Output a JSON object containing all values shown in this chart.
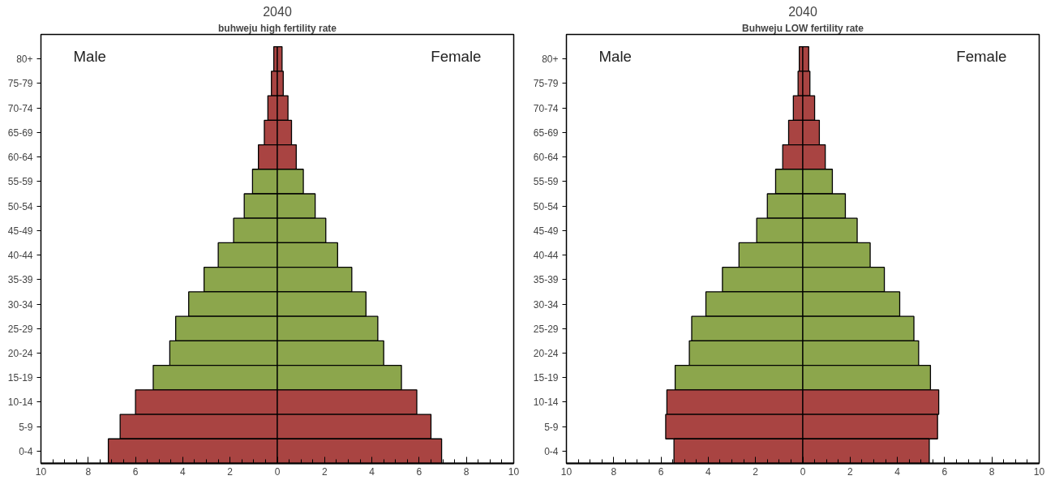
{
  "chart_data": [
    {
      "type": "bar",
      "orientation": "horizontal",
      "stacked": true,
      "title": "2040",
      "subtitle": "buhweju high fertility rate",
      "annotations": [
        "Male",
        "Female"
      ],
      "categories": [
        "80+",
        "75-79",
        "70-74",
        "65-69",
        "60-64",
        "55-59",
        "50-54",
        "45-49",
        "40-44",
        "35-39",
        "30-34",
        "25-29",
        "20-24",
        "15-19",
        "10-14",
        "5-9",
        "0-4"
      ],
      "series": [
        {
          "colors": [
            "#a94442",
            "#a94442",
            "#a94442",
            "#a94442",
            "#a94442",
            "#8ca64c",
            "#8ca64c",
            "#8ca64c",
            "#8ca64c",
            "#8ca64c",
            "#8ca64c",
            "#8ca64c",
            "#8ca64c",
            "#8ca64c",
            "#a94442",
            "#a94442",
            "#a94442"
          ],
          "values": [
            -0.15,
            -0.25,
            -0.4,
            -0.55,
            -0.8,
            -1.05,
            -1.4,
            -1.85,
            -2.5,
            -3.1,
            -3.75,
            -4.3,
            -4.55,
            -5.25,
            -6.0,
            -6.65,
            -7.15
          ]
        },
        {
          "colors": [
            "#a94442",
            "#a94442",
            "#a94442",
            "#a94442",
            "#a94442",
            "#8ca64c",
            "#8ca64c",
            "#8ca64c",
            "#8ca64c",
            "#8ca64c",
            "#8ca64c",
            "#8ca64c",
            "#8ca64c",
            "#8ca64c",
            "#a94442",
            "#a94442",
            "#a94442"
          ],
          "values": [
            0.2,
            0.25,
            0.45,
            0.6,
            0.8,
            1.1,
            1.6,
            2.05,
            2.55,
            3.15,
            3.75,
            4.25,
            4.5,
            5.25,
            5.9,
            6.5,
            6.95
          ]
        }
      ],
      "xlim": [
        -10,
        10
      ],
      "xticks": [
        {
          "value": -10,
          "label": "10"
        },
        {
          "value": -8,
          "label": "8"
        },
        {
          "value": -6,
          "label": "6"
        },
        {
          "value": -4,
          "label": "4"
        },
        {
          "value": -2,
          "label": "2"
        },
        0,
        2,
        4,
        6,
        8,
        10
      ],
      "grid": false
    },
    {
      "type": "bar",
      "orientation": "horizontal",
      "stacked": true,
      "title": "2040",
      "subtitle": "Buhweju LOW fertility rate",
      "annotations": [
        "Male",
        "Female"
      ],
      "categories": [
        "80+",
        "75-79",
        "70-74",
        "65-69",
        "60-64",
        "55-59",
        "50-54",
        "45-49",
        "40-44",
        "35-39",
        "30-34",
        "25-29",
        "20-24",
        "15-19",
        "10-14",
        "5-9",
        "0-4"
      ],
      "series": [
        {
          "colors": [
            "#a94442",
            "#a94442",
            "#a94442",
            "#a94442",
            "#a94442",
            "#8ca64c",
            "#8ca64c",
            "#8ca64c",
            "#8ca64c",
            "#8ca64c",
            "#8ca64c",
            "#8ca64c",
            "#8ca64c",
            "#8ca64c",
            "#a94442",
            "#a94442",
            "#a94442"
          ],
          "values": [
            -0.15,
            -0.2,
            -0.4,
            -0.6,
            -0.85,
            -1.15,
            -1.5,
            -1.95,
            -2.7,
            -3.4,
            -4.1,
            -4.7,
            -4.8,
            -5.4,
            -5.75,
            -5.8,
            -5.45
          ]
        },
        {
          "colors": [
            "#a94442",
            "#a94442",
            "#a94442",
            "#a94442",
            "#a94442",
            "#8ca64c",
            "#8ca64c",
            "#8ca64c",
            "#8ca64c",
            "#8ca64c",
            "#8ca64c",
            "#8ca64c",
            "#8ca64c",
            "#8ca64c",
            "#a94442",
            "#a94442",
            "#a94442"
          ],
          "values": [
            0.25,
            0.3,
            0.5,
            0.7,
            0.95,
            1.25,
            1.8,
            2.3,
            2.85,
            3.45,
            4.1,
            4.7,
            4.9,
            5.4,
            5.75,
            5.7,
            5.35
          ]
        }
      ],
      "xlim": [
        -10,
        10
      ],
      "xticks": [
        {
          "value": -10,
          "label": "10"
        },
        {
          "value": -8,
          "label": "8"
        },
        {
          "value": -6,
          "label": "6"
        },
        {
          "value": -4,
          "label": "4"
        },
        {
          "value": -2,
          "label": "2"
        },
        0,
        2,
        4,
        6,
        8,
        10
      ],
      "grid": false
    }
  ]
}
